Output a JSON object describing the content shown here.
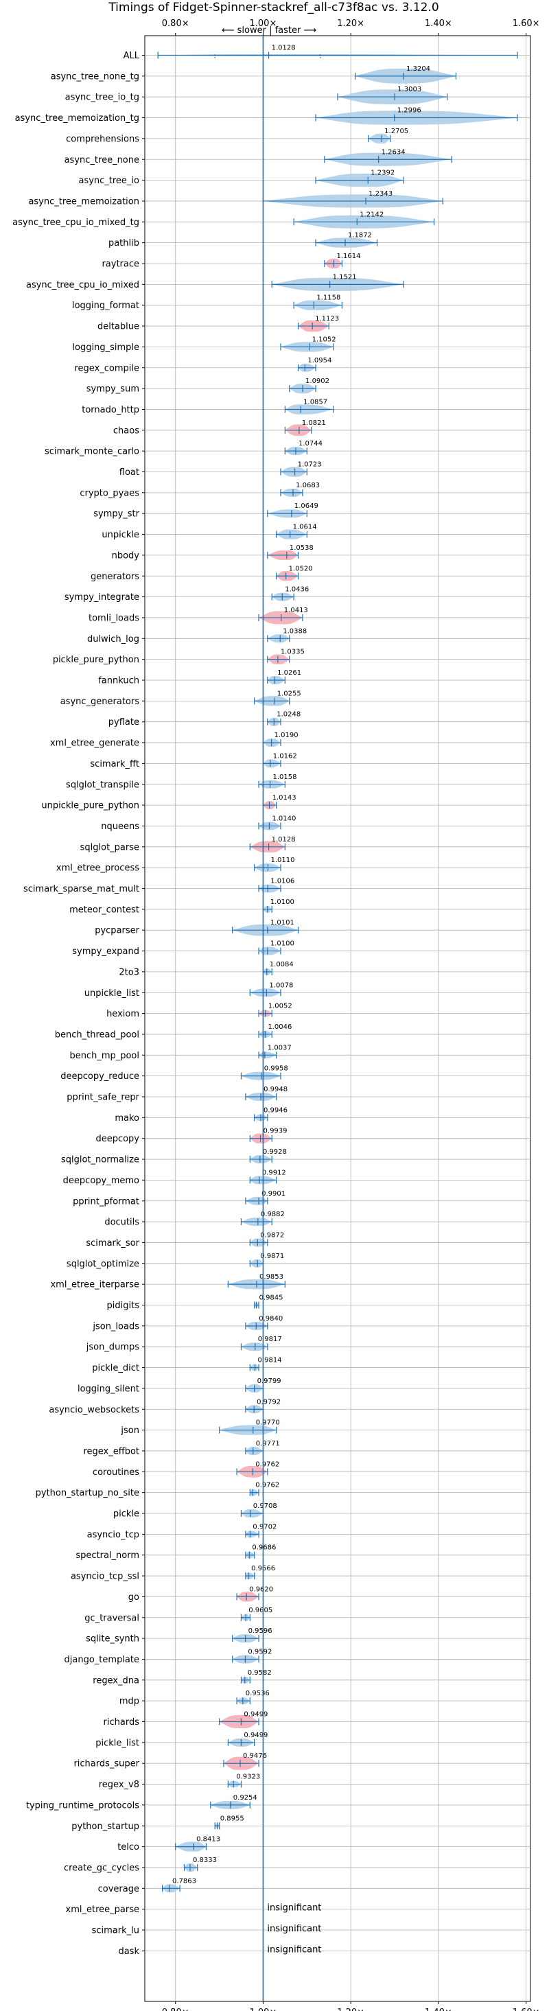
{
  "chart_data": {
    "type": "violin",
    "title": "Timings of Fidget-Spinner-stackref_all-c73f8ac vs. 3.12.0",
    "direction_label": "⟵ slower | faster ⟶",
    "xlim": [
      0.73,
      1.61
    ],
    "x_ticks": [
      0.8,
      1.0,
      1.2,
      1.4,
      1.6
    ],
    "x_tick_labels": [
      "0.80×",
      "1.00×",
      "1.20×",
      "1.40×",
      "1.60×"
    ],
    "reference": 1.0,
    "insignificant_label": "insignificant",
    "colors": {
      "normal": "#a9cbe6",
      "highlight": "#f4a8b2",
      "line": "#1f6fb4"
    },
    "benchmarks": [
      {
        "name": "ALL",
        "value": 1.0128,
        "lo": 0.76,
        "hi": 1.58,
        "q1": 0.89,
        "q3": 1.13,
        "width": 0.12,
        "highlight": false
      },
      {
        "name": "async_tree_none_tg",
        "value": 1.3204,
        "lo": 1.21,
        "hi": 1.44,
        "width": 0.9,
        "highlight": false
      },
      {
        "name": "async_tree_io_tg",
        "value": 1.3003,
        "lo": 1.17,
        "hi": 1.42,
        "width": 0.9,
        "highlight": false
      },
      {
        "name": "async_tree_memoization_tg",
        "value": 1.2996,
        "lo": 1.12,
        "hi": 1.58,
        "width": 0.85,
        "highlight": false
      },
      {
        "name": "comprehensions",
        "value": 1.2705,
        "lo": 1.24,
        "hi": 1.29,
        "width": 0.6,
        "highlight": false
      },
      {
        "name": "async_tree_none",
        "value": 1.2634,
        "lo": 1.14,
        "hi": 1.43,
        "width": 0.8,
        "highlight": false
      },
      {
        "name": "async_tree_io",
        "value": 1.2392,
        "lo": 1.12,
        "hi": 1.32,
        "width": 0.8,
        "highlight": false
      },
      {
        "name": "async_tree_memoization",
        "value": 1.2343,
        "lo": 1.0,
        "hi": 1.41,
        "width": 0.8,
        "highlight": false
      },
      {
        "name": "async_tree_cpu_io_mixed_tg",
        "value": 1.2142,
        "lo": 1.07,
        "hi": 1.39,
        "width": 0.8,
        "highlight": false
      },
      {
        "name": "pathlib",
        "value": 1.1872,
        "lo": 1.12,
        "hi": 1.26,
        "width": 0.6,
        "highlight": false
      },
      {
        "name": "raytrace",
        "value": 1.1614,
        "lo": 1.14,
        "hi": 1.18,
        "width": 0.6,
        "highlight": true
      },
      {
        "name": "async_tree_cpu_io_mixed",
        "value": 1.1521,
        "lo": 1.02,
        "hi": 1.32,
        "width": 0.8,
        "highlight": false
      },
      {
        "name": "logging_format",
        "value": 1.1158,
        "lo": 1.07,
        "hi": 1.18,
        "width": 0.6,
        "highlight": false
      },
      {
        "name": "deltablue",
        "value": 1.1123,
        "lo": 1.08,
        "hi": 1.15,
        "width": 0.7,
        "highlight": true
      },
      {
        "name": "logging_simple",
        "value": 1.1052,
        "lo": 1.04,
        "hi": 1.16,
        "width": 0.6,
        "highlight": false
      },
      {
        "name": "regex_compile",
        "value": 1.0954,
        "lo": 1.08,
        "hi": 1.12,
        "width": 0.5,
        "highlight": false
      },
      {
        "name": "sympy_sum",
        "value": 1.0902,
        "lo": 1.06,
        "hi": 1.12,
        "width": 0.6,
        "highlight": false
      },
      {
        "name": "tornado_http",
        "value": 1.0857,
        "lo": 1.05,
        "hi": 1.16,
        "width": 0.6,
        "highlight": false
      },
      {
        "name": "chaos",
        "value": 1.0821,
        "lo": 1.05,
        "hi": 1.11,
        "width": 0.7,
        "highlight": true
      },
      {
        "name": "scimark_monte_carlo",
        "value": 1.0744,
        "lo": 1.05,
        "hi": 1.1,
        "width": 0.5,
        "highlight": false
      },
      {
        "name": "float",
        "value": 1.0723,
        "lo": 1.04,
        "hi": 1.1,
        "width": 0.6,
        "highlight": false
      },
      {
        "name": "crypto_pyaes",
        "value": 1.0683,
        "lo": 1.04,
        "hi": 1.09,
        "width": 0.5,
        "highlight": false
      },
      {
        "name": "sympy_str",
        "value": 1.0649,
        "lo": 1.01,
        "hi": 1.1,
        "width": 0.5,
        "highlight": false
      },
      {
        "name": "unpickle",
        "value": 1.0614,
        "lo": 1.03,
        "hi": 1.1,
        "width": 0.6,
        "highlight": false
      },
      {
        "name": "nbody",
        "value": 1.0538,
        "lo": 1.01,
        "hi": 1.08,
        "width": 0.6,
        "highlight": true
      },
      {
        "name": "generators",
        "value": 1.052,
        "lo": 1.03,
        "hi": 1.08,
        "width": 0.6,
        "highlight": true
      },
      {
        "name": "sympy_integrate",
        "value": 1.0436,
        "lo": 1.02,
        "hi": 1.07,
        "width": 0.5,
        "highlight": false
      },
      {
        "name": "tomli_loads",
        "value": 1.0413,
        "lo": 0.99,
        "hi": 1.09,
        "width": 0.8,
        "highlight": true
      },
      {
        "name": "dulwich_log",
        "value": 1.0388,
        "lo": 1.01,
        "hi": 1.06,
        "width": 0.5,
        "highlight": false
      },
      {
        "name": "pickle_pure_python",
        "value": 1.0335,
        "lo": 1.01,
        "hi": 1.06,
        "width": 0.6,
        "highlight": true
      },
      {
        "name": "fannkuch",
        "value": 1.0261,
        "lo": 1.01,
        "hi": 1.05,
        "width": 0.5,
        "highlight": false
      },
      {
        "name": "async_generators",
        "value": 1.0255,
        "lo": 0.98,
        "hi": 1.06,
        "width": 0.6,
        "highlight": false
      },
      {
        "name": "pyflate",
        "value": 1.0248,
        "lo": 1.01,
        "hi": 1.04,
        "width": 0.5,
        "highlight": false
      },
      {
        "name": "xml_etree_generate",
        "value": 1.019,
        "lo": 1.0,
        "hi": 1.04,
        "width": 0.5,
        "highlight": false
      },
      {
        "name": "scimark_fft",
        "value": 1.0162,
        "lo": 1.0,
        "hi": 1.04,
        "width": 0.5,
        "highlight": false
      },
      {
        "name": "sqlglot_transpile",
        "value": 1.0158,
        "lo": 0.99,
        "hi": 1.05,
        "width": 0.5,
        "highlight": false
      },
      {
        "name": "unpickle_pure_python",
        "value": 1.0143,
        "lo": 1.0,
        "hi": 1.03,
        "width": 0.5,
        "highlight": true
      },
      {
        "name": "nqueens",
        "value": 1.014,
        "lo": 0.99,
        "hi": 1.04,
        "width": 0.5,
        "highlight": false
      },
      {
        "name": "sqlglot_parse",
        "value": 1.0128,
        "lo": 0.97,
        "hi": 1.05,
        "width": 0.7,
        "highlight": true
      },
      {
        "name": "xml_etree_process",
        "value": 1.011,
        "lo": 0.98,
        "hi": 1.04,
        "width": 0.5,
        "highlight": false
      },
      {
        "name": "scimark_sparse_mat_mult",
        "value": 1.0106,
        "lo": 0.99,
        "hi": 1.04,
        "width": 0.5,
        "highlight": false
      },
      {
        "name": "meteor_contest",
        "value": 1.01,
        "lo": 1.0,
        "hi": 1.02,
        "width": 0.4,
        "highlight": false
      },
      {
        "name": "pycparser",
        "value": 1.0101,
        "lo": 0.93,
        "hi": 1.08,
        "width": 0.7,
        "highlight": false
      },
      {
        "name": "sympy_expand",
        "value": 1.01,
        "lo": 0.99,
        "hi": 1.04,
        "width": 0.5,
        "highlight": false
      },
      {
        "name": "2to3",
        "value": 1.0084,
        "lo": 1.0,
        "hi": 1.02,
        "width": 0.4,
        "highlight": false
      },
      {
        "name": "unpickle_list",
        "value": 1.0078,
        "lo": 0.97,
        "hi": 1.04,
        "width": 0.5,
        "highlight": false
      },
      {
        "name": "hexiom",
        "value": 1.0052,
        "lo": 0.99,
        "hi": 1.02,
        "width": 0.4,
        "highlight": true
      },
      {
        "name": "bench_thread_pool",
        "value": 1.0046,
        "lo": 0.99,
        "hi": 1.02,
        "width": 0.4,
        "highlight": false
      },
      {
        "name": "bench_mp_pool",
        "value": 1.0037,
        "lo": 0.99,
        "hi": 1.03,
        "width": 0.4,
        "highlight": false
      },
      {
        "name": "deepcopy_reduce",
        "value": 0.9958,
        "lo": 0.95,
        "hi": 1.04,
        "width": 0.5,
        "highlight": false
      },
      {
        "name": "pprint_safe_repr",
        "value": 0.9948,
        "lo": 0.96,
        "hi": 1.03,
        "width": 0.5,
        "highlight": false
      },
      {
        "name": "mako",
        "value": 0.9946,
        "lo": 0.98,
        "hi": 1.01,
        "width": 0.4,
        "highlight": false
      },
      {
        "name": "deepcopy",
        "value": 0.9939,
        "lo": 0.97,
        "hi": 1.02,
        "width": 0.6,
        "highlight": true
      },
      {
        "name": "sqlglot_normalize",
        "value": 0.9928,
        "lo": 0.97,
        "hi": 1.02,
        "width": 0.5,
        "highlight": false
      },
      {
        "name": "deepcopy_memo",
        "value": 0.9912,
        "lo": 0.97,
        "hi": 1.03,
        "width": 0.5,
        "highlight": false
      },
      {
        "name": "pprint_pformat",
        "value": 0.9901,
        "lo": 0.96,
        "hi": 1.01,
        "width": 0.5,
        "highlight": false
      },
      {
        "name": "docutils",
        "value": 0.9882,
        "lo": 0.95,
        "hi": 1.02,
        "width": 0.5,
        "highlight": false
      },
      {
        "name": "scimark_sor",
        "value": 0.9872,
        "lo": 0.97,
        "hi": 1.01,
        "width": 0.5,
        "highlight": false
      },
      {
        "name": "sqlglot_optimize",
        "value": 0.9871,
        "lo": 0.97,
        "hi": 1.0,
        "width": 0.5,
        "highlight": false
      },
      {
        "name": "xml_etree_iterparse",
        "value": 0.9853,
        "lo": 0.92,
        "hi": 1.05,
        "width": 0.6,
        "highlight": false
      },
      {
        "name": "pidigits",
        "value": 0.9845,
        "lo": 0.98,
        "hi": 0.99,
        "width": 0.3,
        "highlight": false
      },
      {
        "name": "json_loads",
        "value": 0.984,
        "lo": 0.96,
        "hi": 1.01,
        "width": 0.5,
        "highlight": false
      },
      {
        "name": "json_dumps",
        "value": 0.9817,
        "lo": 0.95,
        "hi": 1.01,
        "width": 0.5,
        "highlight": false
      },
      {
        "name": "pickle_dict",
        "value": 0.9814,
        "lo": 0.97,
        "hi": 0.99,
        "width": 0.4,
        "highlight": false
      },
      {
        "name": "logging_silent",
        "value": 0.9799,
        "lo": 0.96,
        "hi": 1.0,
        "width": 0.5,
        "highlight": false
      },
      {
        "name": "asyncio_websockets",
        "value": 0.9792,
        "lo": 0.96,
        "hi": 1.0,
        "width": 0.5,
        "highlight": false
      },
      {
        "name": "json",
        "value": 0.977,
        "lo": 0.9,
        "hi": 1.03,
        "width": 0.6,
        "highlight": false
      },
      {
        "name": "regex_effbot",
        "value": 0.9771,
        "lo": 0.96,
        "hi": 1.0,
        "width": 0.5,
        "highlight": false
      },
      {
        "name": "coroutines",
        "value": 0.9762,
        "lo": 0.94,
        "hi": 1.01,
        "width": 0.7,
        "highlight": true
      },
      {
        "name": "python_startup_no_site",
        "value": 0.9762,
        "lo": 0.97,
        "hi": 0.99,
        "width": 0.4,
        "highlight": false
      },
      {
        "name": "pickle",
        "value": 0.9708,
        "lo": 0.95,
        "hi": 1.0,
        "width": 0.5,
        "highlight": false
      },
      {
        "name": "asyncio_tcp",
        "value": 0.9702,
        "lo": 0.96,
        "hi": 0.99,
        "width": 0.4,
        "highlight": false
      },
      {
        "name": "spectral_norm",
        "value": 0.9686,
        "lo": 0.96,
        "hi": 0.98,
        "width": 0.4,
        "highlight": false
      },
      {
        "name": "asyncio_tcp_ssl",
        "value": 0.9666,
        "lo": 0.96,
        "hi": 0.98,
        "width": 0.4,
        "highlight": false
      },
      {
        "name": "go",
        "value": 0.962,
        "lo": 0.94,
        "hi": 0.99,
        "width": 0.6,
        "highlight": true
      },
      {
        "name": "gc_traversal",
        "value": 0.9605,
        "lo": 0.95,
        "hi": 0.97,
        "width": 0.4,
        "highlight": false
      },
      {
        "name": "sqlite_synth",
        "value": 0.9596,
        "lo": 0.93,
        "hi": 0.99,
        "width": 0.5,
        "highlight": false
      },
      {
        "name": "django_template",
        "value": 0.9592,
        "lo": 0.93,
        "hi": 0.99,
        "width": 0.5,
        "highlight": false
      },
      {
        "name": "regex_dna",
        "value": 0.9582,
        "lo": 0.95,
        "hi": 0.97,
        "width": 0.4,
        "highlight": false
      },
      {
        "name": "mdp",
        "value": 0.9536,
        "lo": 0.94,
        "hi": 0.97,
        "width": 0.4,
        "highlight": false
      },
      {
        "name": "richards",
        "value": 0.9499,
        "lo": 0.9,
        "hi": 0.99,
        "width": 0.8,
        "highlight": true
      },
      {
        "name": "pickle_list",
        "value": 0.9499,
        "lo": 0.92,
        "hi": 0.98,
        "width": 0.5,
        "highlight": false
      },
      {
        "name": "richards_super",
        "value": 0.9476,
        "lo": 0.91,
        "hi": 0.99,
        "width": 0.8,
        "highlight": true
      },
      {
        "name": "regex_v8",
        "value": 0.9323,
        "lo": 0.92,
        "hi": 0.95,
        "width": 0.4,
        "highlight": false
      },
      {
        "name": "typing_runtime_protocols",
        "value": 0.9254,
        "lo": 0.88,
        "hi": 0.97,
        "width": 0.5,
        "highlight": false
      },
      {
        "name": "python_startup",
        "value": 0.8955,
        "lo": 0.89,
        "hi": 0.9,
        "width": 0.3,
        "highlight": false
      },
      {
        "name": "telco",
        "value": 0.8413,
        "lo": 0.8,
        "hi": 0.87,
        "width": 0.6,
        "highlight": false
      },
      {
        "name": "create_gc_cycles",
        "value": 0.8333,
        "lo": 0.82,
        "hi": 0.85,
        "width": 0.5,
        "highlight": false
      },
      {
        "name": "coverage",
        "value": 0.7863,
        "lo": 0.77,
        "hi": 0.81,
        "width": 0.5,
        "highlight": false
      },
      {
        "name": "xml_etree_parse",
        "value": null,
        "insignificant": true
      },
      {
        "name": "scimark_lu",
        "value": null,
        "insignificant": true
      },
      {
        "name": "dask",
        "value": null,
        "insignificant": true
      }
    ]
  }
}
